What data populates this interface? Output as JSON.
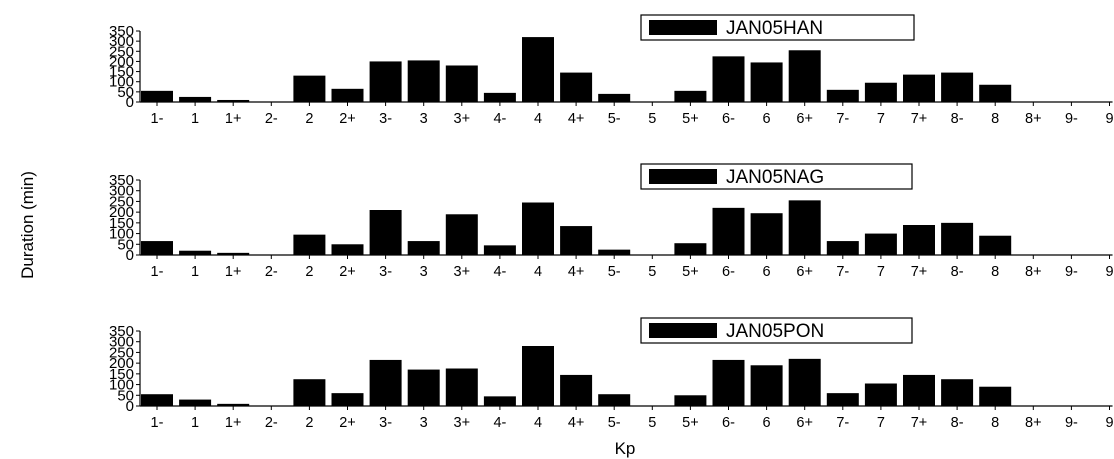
{
  "chart_data": [
    {
      "type": "bar",
      "categories": [
        "1-",
        "1",
        "1+",
        "2-",
        "2",
        "2+",
        "3-",
        "3",
        "3+",
        "4-",
        "4",
        "4+",
        "5-",
        "5",
        "5+",
        "6-",
        "6",
        "6+",
        "7-",
        "7",
        "7+",
        "8-",
        "8",
        "8+",
        "9-",
        "9"
      ],
      "values": [
        55,
        25,
        10,
        0,
        130,
        65,
        200,
        205,
        180,
        45,
        320,
        145,
        40,
        0,
        55,
        225,
        195,
        255,
        60,
        95,
        135,
        145,
        85,
        0,
        0,
        0
      ],
      "legend": "JAN05HAN",
      "legend_position": "top-right",
      "xlabel": "",
      "ylabel": "",
      "yticks": [
        0,
        50,
        100,
        150,
        200,
        250,
        300,
        350
      ],
      "ylim": [
        0,
        350
      ],
      "grid": false
    },
    {
      "type": "bar",
      "categories": [
        "1-",
        "1",
        "1+",
        "2-",
        "2",
        "2+",
        "3-",
        "3",
        "3+",
        "4-",
        "4",
        "4+",
        "5-",
        "5",
        "5+",
        "6-",
        "6",
        "6+",
        "7-",
        "7",
        "7+",
        "8-",
        "8",
        "8+",
        "9-",
        "9"
      ],
      "values": [
        65,
        20,
        10,
        0,
        95,
        50,
        210,
        65,
        190,
        45,
        245,
        135,
        25,
        0,
        55,
        220,
        195,
        255,
        65,
        100,
        140,
        150,
        90,
        0,
        0,
        0
      ],
      "legend": "JAN05NAG",
      "legend_position": "top-right",
      "xlabel": "",
      "ylabel": "Duration (min)",
      "yticks": [
        0,
        50,
        100,
        150,
        200,
        250,
        300,
        350
      ],
      "ylim": [
        0,
        350
      ],
      "grid": false
    },
    {
      "type": "bar",
      "categories": [
        "1-",
        "1",
        "1+",
        "2-",
        "2",
        "2+",
        "3-",
        "3",
        "3+",
        "4-",
        "4",
        "4+",
        "5-",
        "5",
        "5+",
        "6-",
        "6",
        "6+",
        "7-",
        "7",
        "7+",
        "8-",
        "8",
        "8+",
        "9-",
        "9"
      ],
      "values": [
        55,
        30,
        10,
        0,
        125,
        60,
        215,
        170,
        175,
        45,
        280,
        145,
        55,
        0,
        50,
        215,
        190,
        220,
        60,
        105,
        145,
        125,
        90,
        0,
        0,
        0
      ],
      "legend": "JAN05PON",
      "legend_position": "top-right",
      "xlabel": "Kp",
      "ylabel": "",
      "yticks": [
        0,
        50,
        100,
        150,
        200,
        250,
        300,
        350
      ],
      "ylim": [
        0,
        350
      ],
      "grid": false
    }
  ]
}
